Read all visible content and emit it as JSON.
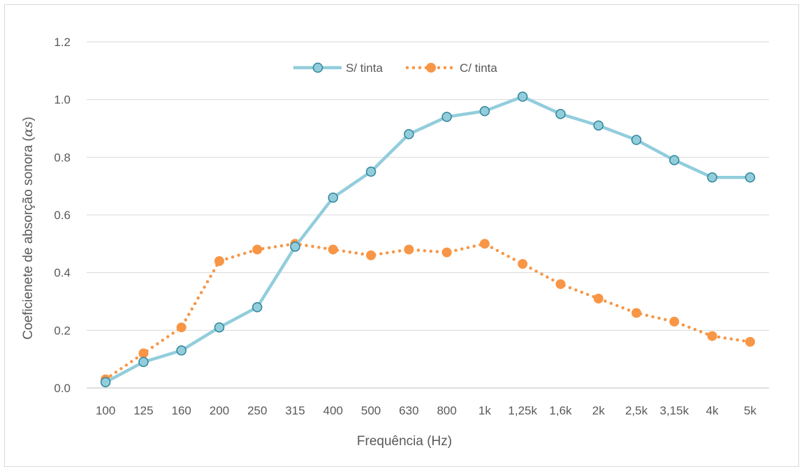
{
  "chart_data": {
    "type": "line",
    "categories": [
      "100",
      "125",
      "160",
      "200",
      "250",
      "315",
      "400",
      "500",
      "630",
      "800",
      "1k",
      "1,25k",
      "1,6k",
      "2k",
      "2,5k",
      "3,15k",
      "4k",
      "5k"
    ],
    "series": [
      {
        "name": "S/ tinta",
        "color": "#92cddc",
        "marker_fill": "#92cddc",
        "marker_stroke": "#31849b",
        "line_style": "solid",
        "marker": "circle",
        "values": [
          0.02,
          0.09,
          0.13,
          0.21,
          0.28,
          0.49,
          0.66,
          0.75,
          0.88,
          0.94,
          0.96,
          1.01,
          0.95,
          0.91,
          0.86,
          0.79,
          0.73,
          0.73
        ]
      },
      {
        "name": "C/ tinta",
        "color": "#f79646",
        "marker_fill": "#f79646",
        "marker_stroke": "#f79646",
        "line_style": "dotted",
        "marker": "circle",
        "values": [
          0.03,
          0.12,
          0.21,
          0.44,
          0.48,
          0.5,
          0.48,
          0.46,
          0.48,
          0.47,
          0.5,
          0.43,
          0.36,
          0.31,
          0.26,
          0.23,
          0.18,
          0.16
        ]
      }
    ],
    "title": "",
    "xlabel": "Frequência (Hz)",
    "ylabel_main": "Coeficienete de absorção sonora (",
    "ylabel_symbol": "αs",
    "ylabel_close": ")",
    "ylim": [
      0,
      1.2
    ],
    "yticks": [
      "0.0",
      "0.2",
      "0.4",
      "0.6",
      "0.8",
      "1.0",
      "1.2"
    ],
    "grid": true,
    "legend_position": "top-center",
    "gridline_color": "#d9d9d9",
    "axis_color": "#bfbfbf"
  }
}
